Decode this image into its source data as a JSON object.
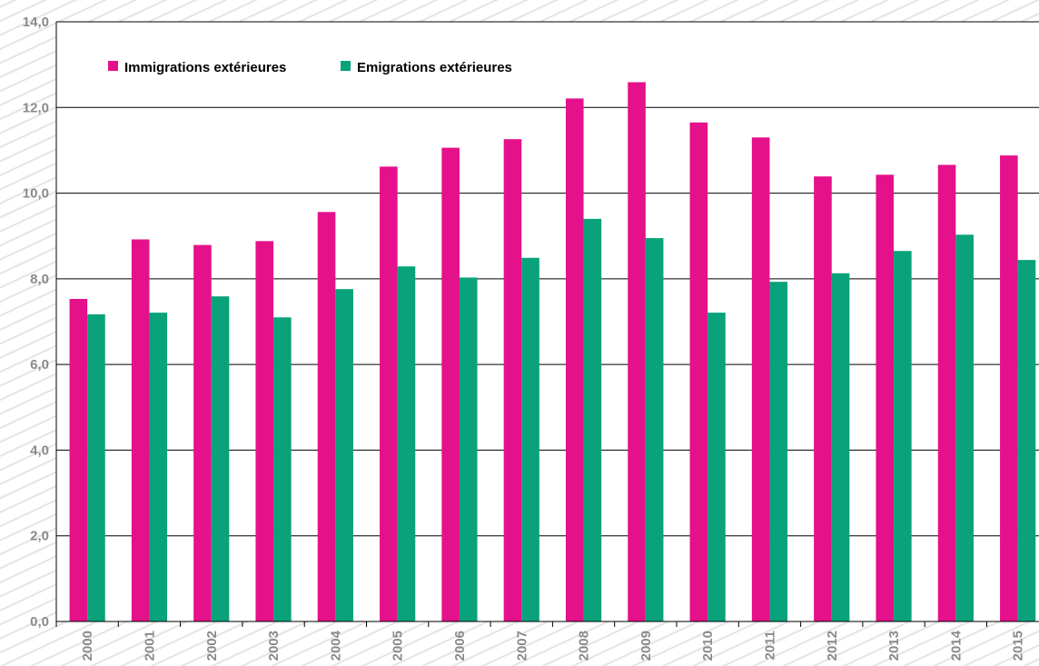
{
  "chart_data": {
    "type": "bar",
    "categories": [
      "2000",
      "2001",
      "2002",
      "2003",
      "2004",
      "2005",
      "2006",
      "2007",
      "2008",
      "2009",
      "2010",
      "2011",
      "2012",
      "2013",
      "2014",
      "2015"
    ],
    "series": [
      {
        "name": "Immigrations extérieures",
        "color": "#e5118a",
        "values": [
          7.53,
          8.92,
          8.79,
          8.88,
          9.56,
          10.62,
          11.06,
          11.26,
          12.21,
          12.59,
          11.65,
          11.3,
          10.39,
          10.43,
          10.66,
          10.88
        ]
      },
      {
        "name": "Emigrations extérieures",
        "color": "#0aa27b",
        "values": [
          7.17,
          7.21,
          7.59,
          7.1,
          7.76,
          8.29,
          8.03,
          8.49,
          9.4,
          8.95,
          7.21,
          7.93,
          8.13,
          8.65,
          9.03,
          8.44
        ]
      }
    ],
    "y_ticks": [
      "0,0",
      "2,0",
      "4,0",
      "6,0",
      "8,0",
      "10,0",
      "12,0",
      "14,0"
    ],
    "ylim": [
      0,
      14
    ],
    "grid": true,
    "legend_position": "top-left"
  }
}
